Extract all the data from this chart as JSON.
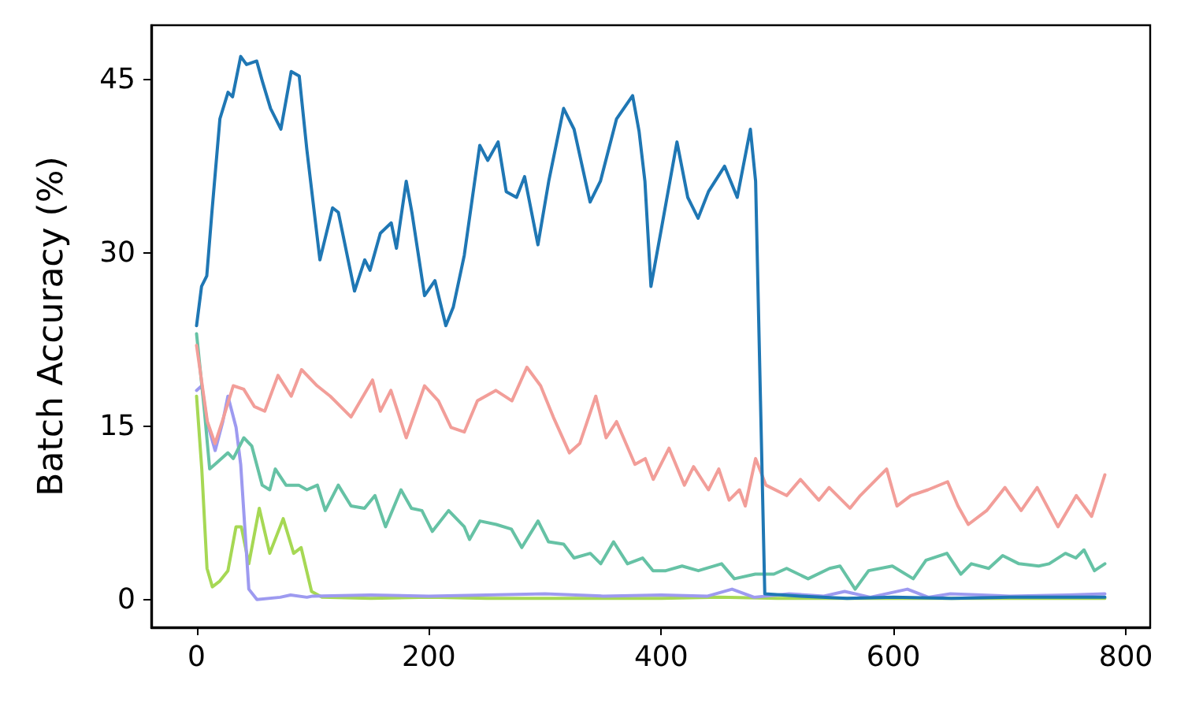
{
  "chart_data": {
    "type": "line",
    "ylabel": "Batch Accuracy (%)",
    "xlim": [
      -39,
      821
    ],
    "ylim": [
      -2.4,
      49.7
    ],
    "xticks": [
      0,
      200,
      400,
      600,
      800
    ],
    "yticks": [
      0,
      15,
      30,
      45
    ],
    "grid": false,
    "marker": "none",
    "line_style": "solid",
    "series": [
      {
        "color": "#1f77b4",
        "x": [
          0,
          4.3,
          8.8,
          13.2,
          20.1,
          27.1,
          31,
          38,
          43,
          51.8,
          56.8,
          63.7,
          72.6,
          81.5,
          88.4,
          95,
          106.2,
          117.1,
          122.1,
          136,
          144.8,
          149.3,
          158.2,
          167.6,
          172.1,
          180.5,
          185.4,
          196.3,
          205.2,
          214.6,
          221,
          230.5,
          243.8,
          250.7,
          259.6,
          266.6,
          275.5,
          282.4,
          293.9,
          303.2,
          316,
          325,
          338.8,
          347.7,
          361.6,
          375.4,
          381,
          386,
          391.2,
          400.2,
          413.6,
          422.9,
          431.8,
          440.7,
          454.6,
          465.5,
          476.8,
          481.3,
          489.2,
          520,
          560,
          600,
          650,
          700,
          782
        ],
        "values": [
          23.7,
          27.1,
          28.0,
          33.5,
          41.6,
          43.9,
          43.5,
          47.0,
          46.3,
          46.6,
          44.8,
          42.5,
          40.7,
          45.7,
          45.3,
          38.9,
          29.4,
          33.9,
          33.5,
          26.7,
          29.4,
          28.5,
          31.7,
          32.6,
          30.4,
          36.2,
          33.5,
          26.3,
          27.6,
          23.7,
          25.3,
          29.8,
          39.3,
          38.0,
          39.6,
          35.3,
          34.8,
          36.6,
          30.7,
          36.2,
          42.5,
          40.7,
          34.4,
          36.2,
          41.6,
          43.6,
          40.5,
          36.2,
          27.1,
          32.1,
          39.6,
          34.8,
          33.0,
          35.3,
          37.5,
          34.8,
          40.7,
          36.2,
          0.5,
          0.3,
          0.1,
          0.2,
          0.1,
          0.2,
          0.2
        ]
      },
      {
        "color": "#f29e99",
        "x": [
          0,
          9.3,
          15.9,
          22.1,
          31.6,
          40.6,
          49.8,
          58.7,
          70.1,
          81.5,
          90.4,
          103.8,
          115.1,
          133,
          151.5,
          158.2,
          167.3,
          180.5,
          196.3,
          208.2,
          219.1,
          230.5,
          241.8,
          257.6,
          271.5,
          284.4,
          296.2,
          307.1,
          321,
          329.9,
          343.7,
          352.6,
          361.6,
          377.4,
          386.3,
          393.2,
          406.8,
          420,
          427.9,
          440.7,
          449.6,
          458.5,
          467.4,
          472.4,
          481.3,
          490.2,
          508,
          519.9,
          535.7,
          544.6,
          562.5,
          571.4,
          594.1,
          603,
          614.9,
          629.7,
          646.6,
          655.5,
          664.4,
          680.2,
          696,
          709.9,
          723.7,
          741.6,
          757.4,
          770.6,
          782
        ],
        "values": [
          22,
          15.4,
          13.5,
          15.4,
          18.5,
          18.2,
          16.7,
          16.3,
          19.4,
          17.6,
          19.9,
          18.5,
          17.6,
          15.8,
          19.0,
          16.3,
          18.1,
          14.0,
          18.5,
          17.2,
          14.9,
          14.5,
          17.2,
          18.1,
          17.2,
          20.1,
          18.5,
          15.8,
          12.7,
          13.5,
          17.6,
          14.0,
          15.4,
          11.7,
          12.2,
          10.4,
          13.1,
          9.9,
          11.5,
          9.5,
          11.3,
          8.6,
          9.5,
          8.1,
          12.2,
          9.9,
          9.0,
          10.4,
          8.6,
          9.7,
          7.9,
          9.0,
          11.3,
          8.1,
          9.0,
          9.5,
          10.2,
          8.1,
          6.5,
          7.7,
          9.7,
          7.7,
          9.7,
          6.3,
          9.0,
          7.2,
          10.8
        ]
      },
      {
        "color": "#66c2a5",
        "x": [
          0,
          6.8,
          11.3,
          15.8,
          27,
          31.6,
          40.7,
          47.5,
          56.5,
          63,
          67.8,
          77,
          88,
          95,
          104,
          110.8,
          122,
          133,
          144.6,
          153.6,
          162.7,
          176,
          185,
          194,
          203,
          217,
          230.5,
          235,
          244,
          258,
          271,
          280,
          294,
          303,
          316,
          325,
          339,
          348,
          359,
          371,
          384,
          393,
          404,
          418,
          432,
          452,
          463,
          481,
          497,
          508,
          526.5,
          545,
          554,
          567,
          578.6,
          599,
          617,
          628,
          646,
          658,
          667,
          682,
          694,
          708,
          725,
          734,
          748,
          757,
          764,
          773,
          782
        ],
        "values": [
          23.0,
          16.3,
          11.3,
          11.7,
          12.7,
          12.2,
          14.0,
          13.3,
          9.9,
          9.5,
          11.3,
          9.9,
          9.9,
          9.5,
          9.9,
          7.7,
          9.9,
          8.1,
          7.9,
          9.0,
          6.3,
          9.5,
          7.9,
          7.7,
          5.9,
          7.7,
          6.3,
          5.2,
          6.8,
          6.5,
          6.1,
          4.5,
          6.8,
          5.0,
          4.8,
          3.6,
          4.0,
          3.1,
          5.0,
          3.1,
          3.6,
          2.5,
          2.5,
          2.9,
          2.5,
          3.1,
          1.8,
          2.2,
          2.2,
          2.7,
          1.8,
          2.7,
          2.9,
          0.9,
          2.5,
          2.9,
          1.8,
          3.4,
          4.0,
          2.2,
          3.1,
          2.7,
          3.8,
          3.1,
          2.9,
          3.1,
          4.0,
          3.6,
          4.3,
          2.5,
          3.1
        ]
      },
      {
        "color": "#9d9af0",
        "x": [
          0,
          4.5,
          9,
          16,
          22.6,
          27,
          34,
          38,
          45,
          52,
          72,
          81,
          95,
          100,
          150,
          200,
          250,
          300,
          350,
          400,
          440,
          461,
          480,
          510,
          540,
          558,
          580,
          612,
          630,
          649,
          700,
          750,
          782
        ],
        "values": [
          18.1,
          18.5,
          15.4,
          12.9,
          15.4,
          17.6,
          14.9,
          11.7,
          0.9,
          0,
          0.2,
          0.4,
          0.2,
          0.3,
          0.4,
          0.3,
          0.4,
          0.5,
          0.3,
          0.4,
          0.3,
          0.9,
          0.2,
          0.5,
          0.3,
          0.7,
          0.2,
          0.9,
          0.2,
          0.5,
          0.3,
          0.4,
          0.5
        ]
      },
      {
        "color": "#a6d854",
        "x": [
          0,
          4.5,
          9,
          13.6,
          20,
          27,
          34,
          38.5,
          45,
          54,
          63,
          74.6,
          83.6,
          90,
          99,
          108,
          150,
          200,
          250,
          300,
          350,
          400,
          450,
          500,
          550,
          600,
          650,
          700,
          782
        ],
        "values": [
          17.6,
          11.3,
          2.7,
          1.1,
          1.6,
          2.5,
          6.3,
          6.3,
          3.1,
          7.9,
          4.0,
          7.0,
          4.0,
          4.5,
          0.7,
          0.2,
          0.1,
          0.2,
          0.1,
          0.1,
          0.1,
          0.1,
          0.2,
          0.1,
          0.1,
          0.1,
          0.1,
          0.1,
          0.1
        ]
      }
    ]
  }
}
